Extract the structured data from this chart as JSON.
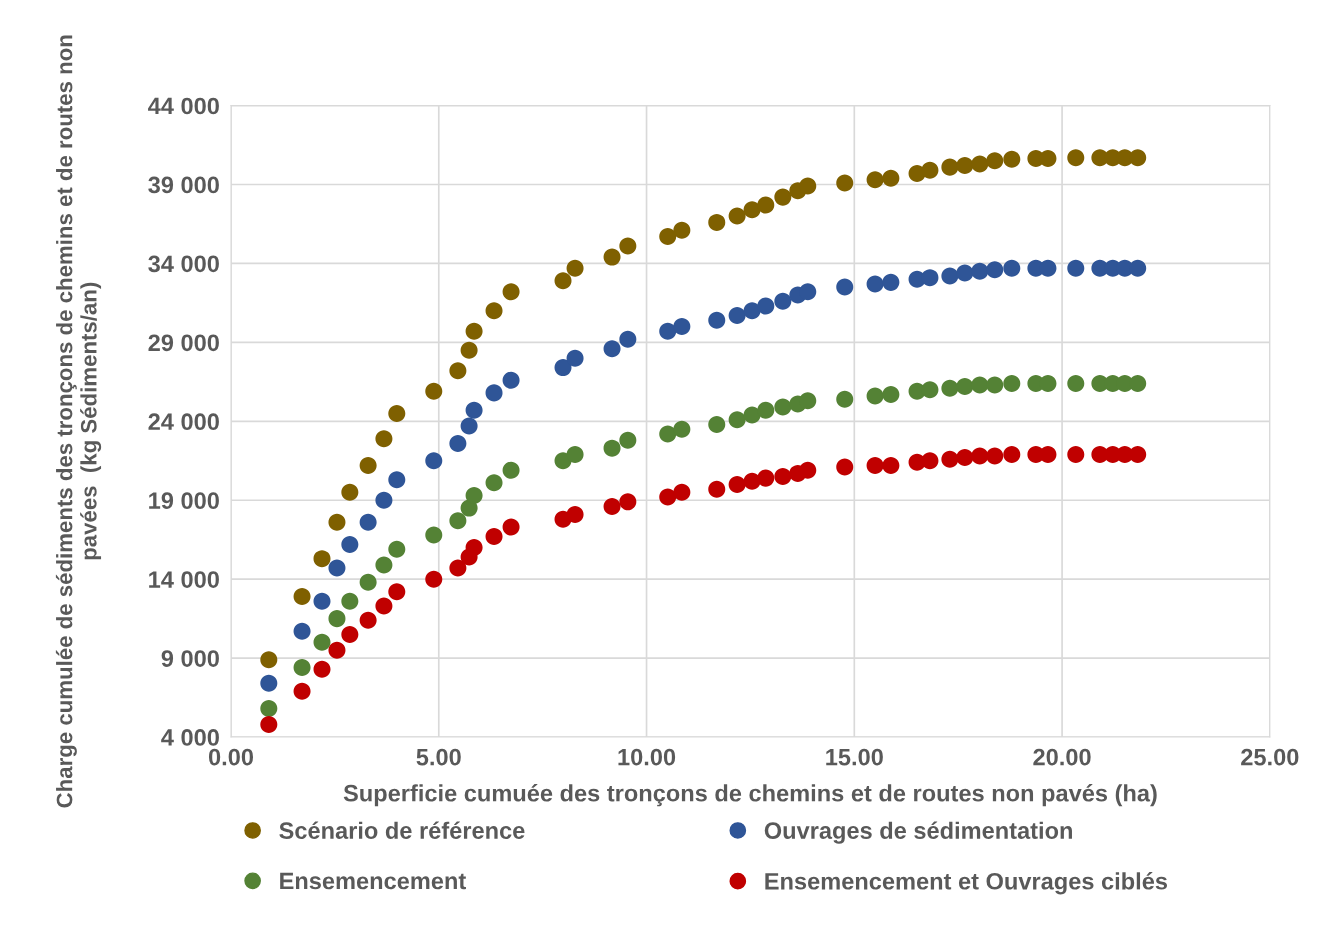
{
  "chart_data": {
    "type": "scatter",
    "xlabel": "Superficie cumuée des tronçons de chemins et de routes non pavés (ha)",
    "ylabel": "Charge cumulée de sédiments des tronçons de chemins et de routes non pavées  (kg Sédiments/an)",
    "x": [
      0.91,
      1.71,
      2.19,
      2.55,
      2.86,
      3.3,
      3.68,
      3.99,
      4.88,
      5.46,
      5.73,
      5.85,
      6.33,
      6.74,
      7.99,
      8.28,
      9.17,
      9.55,
      10.51,
      10.85,
      11.69,
      12.18,
      12.54,
      12.87,
      13.28,
      13.64,
      13.88,
      14.77,
      15.5,
      15.88,
      16.51,
      16.82,
      17.3,
      17.66,
      18.02,
      18.38,
      18.79,
      19.37,
      19.66,
      20.33,
      20.91,
      21.22,
      21.51,
      21.82
    ],
    "series": [
      {
        "name": "Scénario de référence",
        "color": "#7f6000",
        "values": [
          8900,
          12900,
          15300,
          17600,
          19500,
          21200,
          22900,
          24500,
          25900,
          27200,
          28500,
          29700,
          31000,
          32200,
          32900,
          33700,
          34400,
          35100,
          35700,
          36100,
          36600,
          37000,
          37400,
          37700,
          38200,
          38600,
          38900,
          39100,
          39300,
          39400,
          39700,
          39900,
          40100,
          40200,
          40300,
          40500,
          40600,
          40650,
          40650,
          40700,
          40700,
          40700,
          40700,
          40700
        ]
      },
      {
        "name": "Ouvrages de sédimentation",
        "color": "#2f5597",
        "values": [
          7400,
          10700,
          12600,
          14700,
          16200,
          17600,
          19000,
          20300,
          21500,
          22600,
          23700,
          24700,
          25800,
          26600,
          27400,
          28000,
          28600,
          29200,
          29700,
          30000,
          30400,
          30700,
          31000,
          31300,
          31600,
          32000,
          32200,
          32500,
          32700,
          32800,
          33000,
          33100,
          33200,
          33400,
          33500,
          33600,
          33700,
          33700,
          33700,
          33700,
          33700,
          33700,
          33700,
          33700
        ]
      },
      {
        "name": "Ensemencement",
        "color": "#548235",
        "values": [
          5800,
          8400,
          10000,
          11500,
          12600,
          13800,
          14900,
          15900,
          16800,
          17700,
          18500,
          19300,
          20100,
          20900,
          21500,
          21900,
          22300,
          22800,
          23200,
          23500,
          23800,
          24100,
          24400,
          24700,
          24900,
          25100,
          25300,
          25400,
          25600,
          25700,
          25900,
          26000,
          26100,
          26200,
          26300,
          26300,
          26400,
          26400,
          26400,
          26400,
          26400,
          26400,
          26400,
          26400
        ]
      },
      {
        "name": "Ensemencement et Ouvrages ciblés",
        "color": "#c00000",
        "values": [
          4800,
          6900,
          8300,
          9500,
          10500,
          11400,
          12300,
          13200,
          14000,
          14700,
          15400,
          16000,
          16700,
          17300,
          17800,
          18100,
          18600,
          18900,
          19200,
          19500,
          19700,
          20000,
          20200,
          20400,
          20500,
          20700,
          20900,
          21100,
          21200,
          21200,
          21400,
          21500,
          21600,
          21700,
          21800,
          21800,
          21900,
          21900,
          21900,
          21900,
          21900,
          21900,
          21900,
          21900
        ]
      }
    ],
    "xlim": [
      0,
      25
    ],
    "xticks": [
      {
        "value": 0,
        "label": "0.00"
      },
      {
        "value": 5,
        "label": "5.00"
      },
      {
        "value": 10,
        "label": "10.00"
      },
      {
        "value": 15,
        "label": "15.00"
      },
      {
        "value": 20,
        "label": "20.00"
      },
      {
        "value": 25,
        "label": "25.00"
      }
    ],
    "ylim": [
      4000,
      44000
    ],
    "yticks": [
      {
        "value": 4000,
        "label": "4 000"
      },
      {
        "value": 9000,
        "label": "9 000"
      },
      {
        "value": 14000,
        "label": "14 000"
      },
      {
        "value": 19000,
        "label": "19 000"
      },
      {
        "value": 24000,
        "label": "24 000"
      },
      {
        "value": 29000,
        "label": "29 000"
      },
      {
        "value": 34000,
        "label": "34 000"
      },
      {
        "value": 39000,
        "label": "39 000"
      },
      {
        "value": 44000,
        "label": "44 000"
      }
    ],
    "grid": true,
    "legend": "bottom",
    "marker": "circle"
  }
}
